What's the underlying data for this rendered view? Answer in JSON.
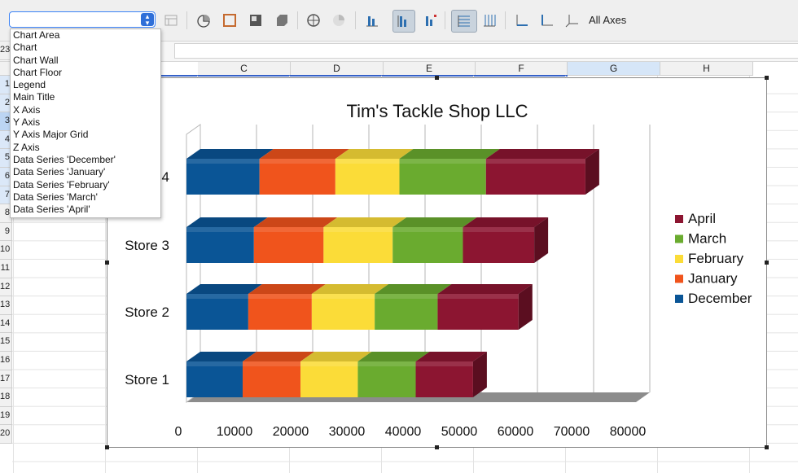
{
  "toolbar": {
    "element_select_value": "",
    "all_axes_label": "All Axes"
  },
  "columns": [
    "C",
    "D",
    "E",
    "F",
    "G",
    "H"
  ],
  "selected_column": "G",
  "rows": [
    "23",
    "1",
    "2",
    "3",
    "4",
    "5",
    "6",
    "7",
    "8",
    "9",
    "10",
    "11",
    "12",
    "13",
    "14",
    "15",
    "16",
    "17",
    "18",
    "19",
    "20"
  ],
  "element_dropdown": {
    "items": [
      "Chart Area",
      "Chart",
      "Chart Wall",
      "Chart Floor",
      "Legend",
      "Main Title",
      "X Axis",
      "Y Axis",
      "Y Axis Major Grid",
      "Z Axis",
      "Data Series 'December'",
      "Data Series 'January'",
      "Data Series 'February'",
      "Data Series 'March'",
      "Data Series 'April'"
    ]
  },
  "chart_data": {
    "type": "bar",
    "orientation": "horizontal",
    "stacked": true,
    "style": "3d",
    "title": "Tim's Tackle Shop LLC",
    "categories": [
      "Store 1",
      "Store 2",
      "Store 3",
      "Store 4"
    ],
    "category_labels_visible": [
      "Store 1",
      "Store 2",
      "Store 3",
      "4"
    ],
    "xlim": [
      0,
      80000
    ],
    "ticks": [
      0,
      10000,
      20000,
      30000,
      40000,
      50000,
      60000,
      70000,
      80000
    ],
    "grid": "vertical major",
    "legend_position": "right",
    "series": [
      {
        "name": "December",
        "color": "#0a5596",
        "values": [
          10000,
          11000,
          12000,
          13000
        ]
      },
      {
        "name": "January",
        "color": "#f0541c",
        "values": [
          10300,
          11300,
          12400,
          13500
        ]
      },
      {
        "name": "February",
        "color": "#fbdc38",
        "values": [
          10200,
          11200,
          12300,
          11400
        ]
      },
      {
        "name": "March",
        "color": "#6aab2f",
        "values": [
          10300,
          11200,
          12500,
          15400
        ]
      },
      {
        "name": "April",
        "color": "#8c1531",
        "values": [
          10200,
          14400,
          12700,
          17700
        ]
      }
    ],
    "legend_order": [
      "April",
      "March",
      "February",
      "January",
      "December"
    ]
  }
}
